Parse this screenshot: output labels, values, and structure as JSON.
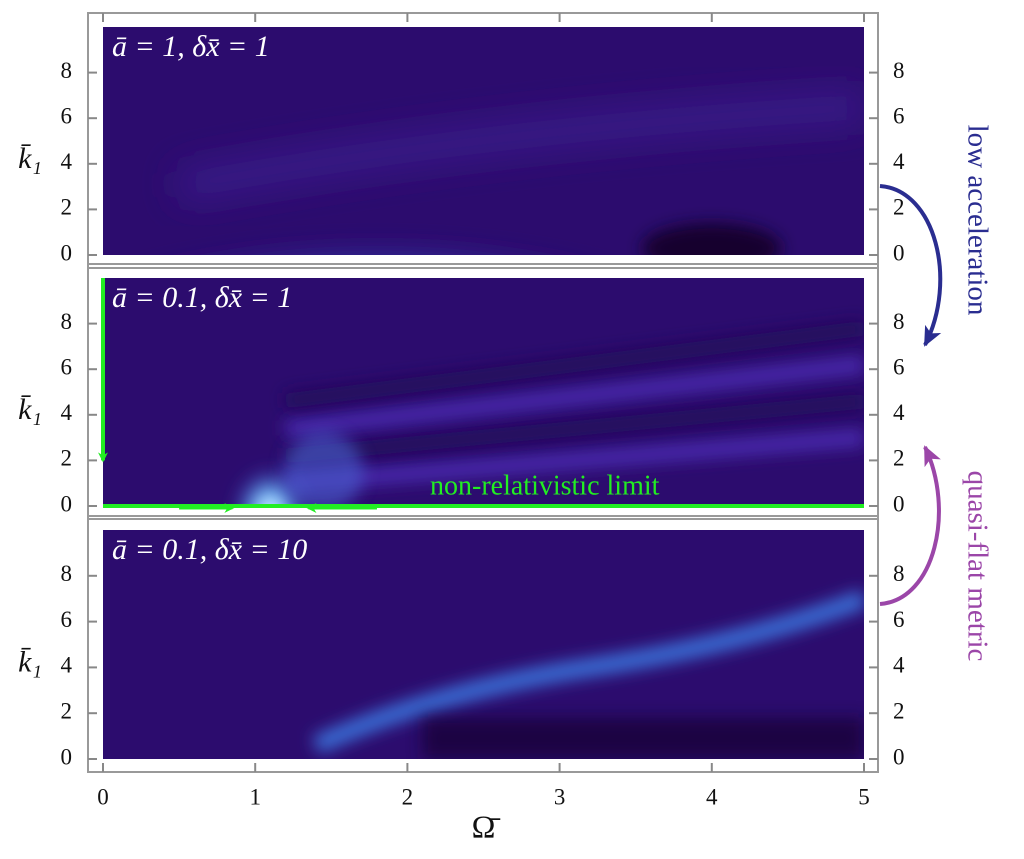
{
  "chart_data": [
    {
      "type": "heatmap",
      "title": "ā = 1, δx̄ = 1",
      "y_label": "k̄₁",
      "xlim": [
        0,
        5
      ],
      "ylim": [
        0,
        10
      ],
      "yticks": [
        0,
        2,
        4,
        6,
        8
      ]
    },
    {
      "type": "heatmap",
      "title": "ā = 0.1, δx̄ = 1",
      "y_label": "k̄₁",
      "xlim": [
        0,
        5
      ],
      "ylim": [
        0,
        10
      ],
      "yticks": [
        0,
        2,
        4,
        6,
        8
      ],
      "annotation": "non-relativistic limit"
    },
    {
      "type": "heatmap",
      "title": "ā = 0.1, δx̄ = 10",
      "y_label": "k̄₁",
      "x_label": "Ω̄",
      "xlim": [
        0,
        5
      ],
      "ylim": [
        0,
        10
      ],
      "yticks": [
        0,
        2,
        4,
        6,
        8
      ],
      "xticks": [
        0,
        1,
        2,
        3,
        4,
        5
      ]
    }
  ],
  "annotations": [
    "low acceleration",
    "quasi-flat metric"
  ]
}
